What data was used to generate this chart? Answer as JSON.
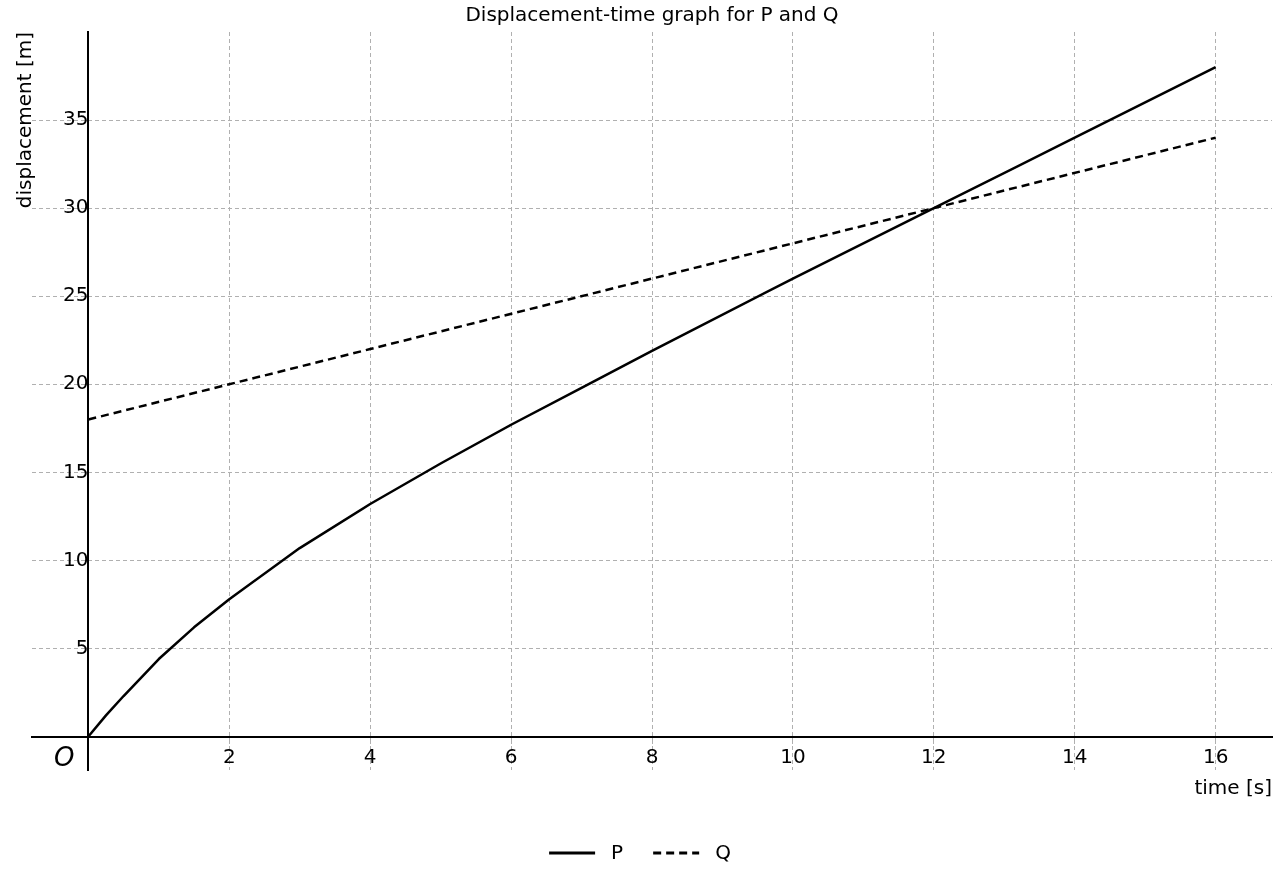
{
  "chart_data": {
    "type": "line",
    "title": "Displacement-time graph for P and Q",
    "xlabel": "time [s]",
    "ylabel": "displacement [m]",
    "x": [
      0,
      0.25,
      0.5,
      1,
      1.5,
      2,
      3,
      4,
      5,
      6,
      7,
      8,
      10,
      12,
      14,
      16
    ],
    "series": [
      {
        "name": "P",
        "color": "#000000",
        "line_style": "solid",
        "values": [
          0,
          1.2,
          2.3,
          4.4,
          6.2,
          7.8,
          10.7,
          13.2,
          15.5,
          17.7,
          19.8,
          21.9,
          26,
          30,
          34,
          38
        ]
      },
      {
        "name": "Q",
        "color": "#000000",
        "line_style": "dashed",
        "x": [
          0,
          4,
          8,
          12,
          16
        ],
        "values": [
          18,
          22,
          26,
          30,
          34
        ]
      }
    ],
    "xlim": [
      -0.8,
      16.8
    ],
    "ylim": [
      -1.9,
      40
    ],
    "xticks": [
      2,
      4,
      6,
      8,
      10,
      12,
      14,
      16
    ],
    "yticks": [
      5,
      10,
      15,
      20,
      25,
      30,
      35
    ],
    "grid": true,
    "legend": "bottom",
    "marker": "none",
    "annotations": [
      {
        "text": "O",
        "x": 0,
        "y": 0
      }
    ]
  }
}
